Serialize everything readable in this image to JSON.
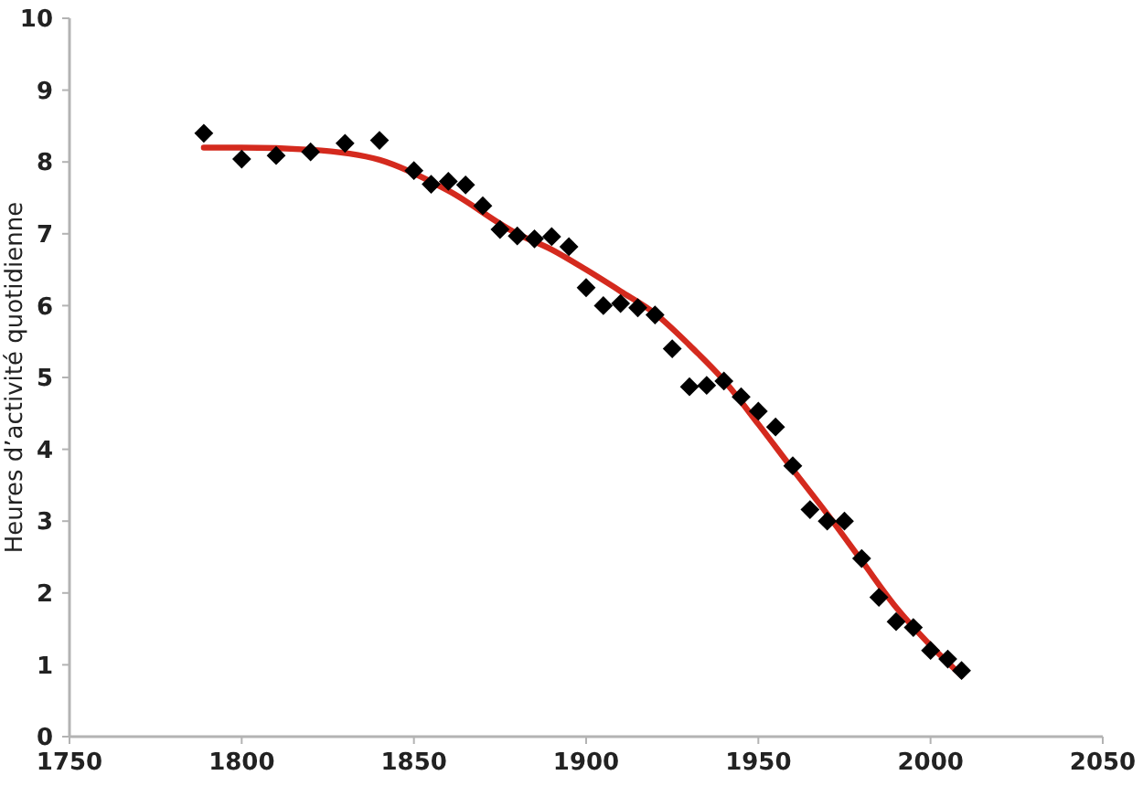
{
  "chart_data": {
    "type": "scatter",
    "ylabel": "Heures d’activité quotidienne",
    "xlim": [
      1750,
      2050
    ],
    "xticks": [
      1750,
      1800,
      1850,
      1900,
      1950,
      2000,
      2050
    ],
    "ylim": [
      0,
      10
    ],
    "yticks": [
      0,
      1,
      2,
      3,
      4,
      5,
      6,
      7,
      8,
      9,
      10
    ],
    "grid": false,
    "marker": "diamond",
    "series": [
      {
        "color": "#000000",
        "x": [
          1789,
          1800,
          1810,
          1820,
          1830,
          1840,
          1850,
          1855,
          1860,
          1865,
          1870,
          1875,
          1880,
          1885,
          1890,
          1895,
          1900,
          1905,
          1910,
          1915,
          1920,
          1925,
          1930,
          1935,
          1940,
          1945,
          1950,
          1955,
          1960,
          1965,
          1970,
          1975,
          1980,
          1985,
          1990,
          1995,
          2000,
          2005,
          2009
        ],
        "values": [
          8.4,
          8.04,
          8.09,
          8.14,
          8.26,
          8.3,
          7.88,
          7.69,
          7.73,
          7.68,
          7.39,
          7.06,
          6.97,
          6.93,
          6.96,
          6.82,
          6.25,
          6.0,
          6.03,
          5.97,
          5.87,
          5.4,
          4.87,
          4.89,
          4.95,
          4.73,
          4.53,
          4.31,
          3.77,
          3.16,
          3.0,
          3.0,
          2.48,
          1.94,
          1.6,
          1.52,
          1.2,
          1.08,
          0.92
        ]
      },
      {
        "type": "line",
        "color": "#d42a1e",
        "line_style": "solid",
        "marker": "none",
        "x": [
          1789,
          1800,
          1820,
          1840,
          1860,
          1880,
          1890,
          1900,
          1910,
          1920,
          1930,
          1940,
          1950,
          1960,
          1970,
          1980,
          1990,
          2000,
          2009
        ],
        "values": [
          8.2,
          8.2,
          8.17,
          8.03,
          7.6,
          7.0,
          6.78,
          6.5,
          6.2,
          5.89,
          5.45,
          4.96,
          4.35,
          3.72,
          3.1,
          2.45,
          1.8,
          1.27,
          0.85
        ]
      }
    ]
  }
}
